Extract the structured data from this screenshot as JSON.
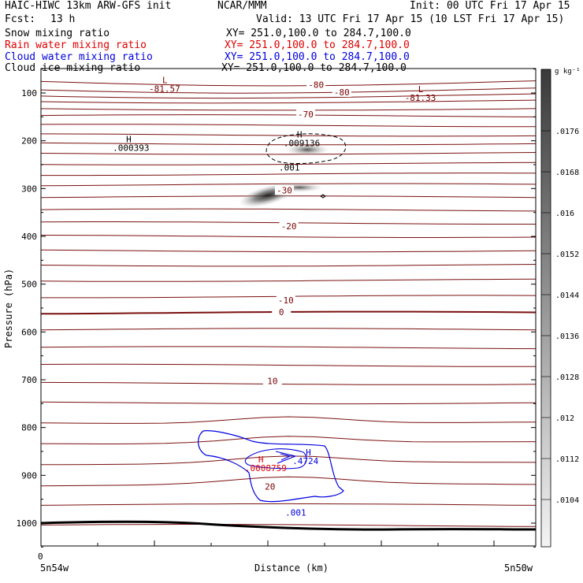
{
  "header": {
    "model": "HAIC-HIWC 13km ARW-GFS init",
    "org": "NCAR/MMM",
    "init": "Init: 00 UTC Fri 17 Apr 15",
    "fcst_label": "Fcst:",
    "fcst_value": "13 h",
    "valid": "Valid: 13 UTC Fri 17 Apr 15 (10 LST Fri 17 Apr 15)"
  },
  "fields": [
    {
      "name": "Snow mixing ratio",
      "xy": "XY= 251.0,100.0 to 284.7,100.0",
      "color": "#000000"
    },
    {
      "name": "Rain water mixing ratio",
      "xy": "XY= 251.0,100.0 to 284.7,100.0",
      "color": "#e00000"
    },
    {
      "name": "Cloud water mixing ratio",
      "xy": "XY= 251.0,100.0 to 284.7,100.0",
      "color": "#0000e0"
    },
    {
      "name": "Cloud ice mixing ratio",
      "xy": "XY= 251.0,100.0 to 284.7,100.0",
      "color": "#000000"
    }
  ],
  "chart_data": {
    "type": "cross-section contour",
    "ylabel": "Pressure (hPa)",
    "xlabel": "Distance (km)",
    "y_ticks": [
      100,
      200,
      300,
      400,
      500,
      600,
      700,
      800,
      900,
      1000
    ],
    "ylim": [
      50,
      1050
    ],
    "x_start_tick": "0",
    "x_left_label": "5n54w",
    "x_right_label": "5n50w",
    "colorbar": {
      "unit": "g kg⁻¹",
      "ticks": [
        ".0176",
        ".0168",
        ".016",
        ".0152",
        ".0144",
        ".0136",
        ".0128",
        ".012",
        ".0112",
        ".0104"
      ]
    },
    "temperature_labels": [
      {
        "text": "-80",
        "x": 0.556,
        "p": 84
      },
      {
        "text": "-80",
        "x": 0.608,
        "p": 100
      },
      {
        "text": "-70",
        "x": 0.535,
        "p": 146
      },
      {
        "text": "-30",
        "x": 0.492,
        "p": 305
      },
      {
        "text": "-20",
        "x": 0.501,
        "p": 380
      },
      {
        "text": "-10",
        "x": 0.495,
        "p": 535
      },
      {
        "text": "0",
        "x": 0.486,
        "p": 560
      },
      {
        "text": "10",
        "x": 0.468,
        "p": 704
      },
      {
        "text": "20",
        "x": 0.463,
        "p": 925
      }
    ],
    "extrema_labels": [
      {
        "mark": "L",
        "value": "-81.57",
        "x": 0.258,
        "p": 89,
        "color": "#7a0000"
      },
      {
        "mark": "L",
        "value": "-81.33",
        "x": 0.775,
        "p": 108,
        "color": "#7a0000"
      },
      {
        "mark": "H",
        "value": ".000393",
        "x": 0.185,
        "p": 213,
        "color": "#000000"
      },
      {
        "mark": "H",
        "value": ".009136",
        "x": 0.53,
        "p": 203,
        "color": "#000000"
      },
      {
        "mark": "H",
        "value": ".4724",
        "x": 0.548,
        "p": 868,
        "color": "#0000e0"
      },
      {
        "mark": "H",
        "value": ".0008759",
        "x": 0.452,
        "p": 883,
        "color": "#e00000"
      }
    ],
    "contour_labels": [
      {
        "text": ".001",
        "x": 0.5,
        "p": 256,
        "color": "#000000"
      },
      {
        "text": ".001",
        "x": 0.513,
        "p": 978,
        "color": "#0000e0"
      }
    ]
  }
}
